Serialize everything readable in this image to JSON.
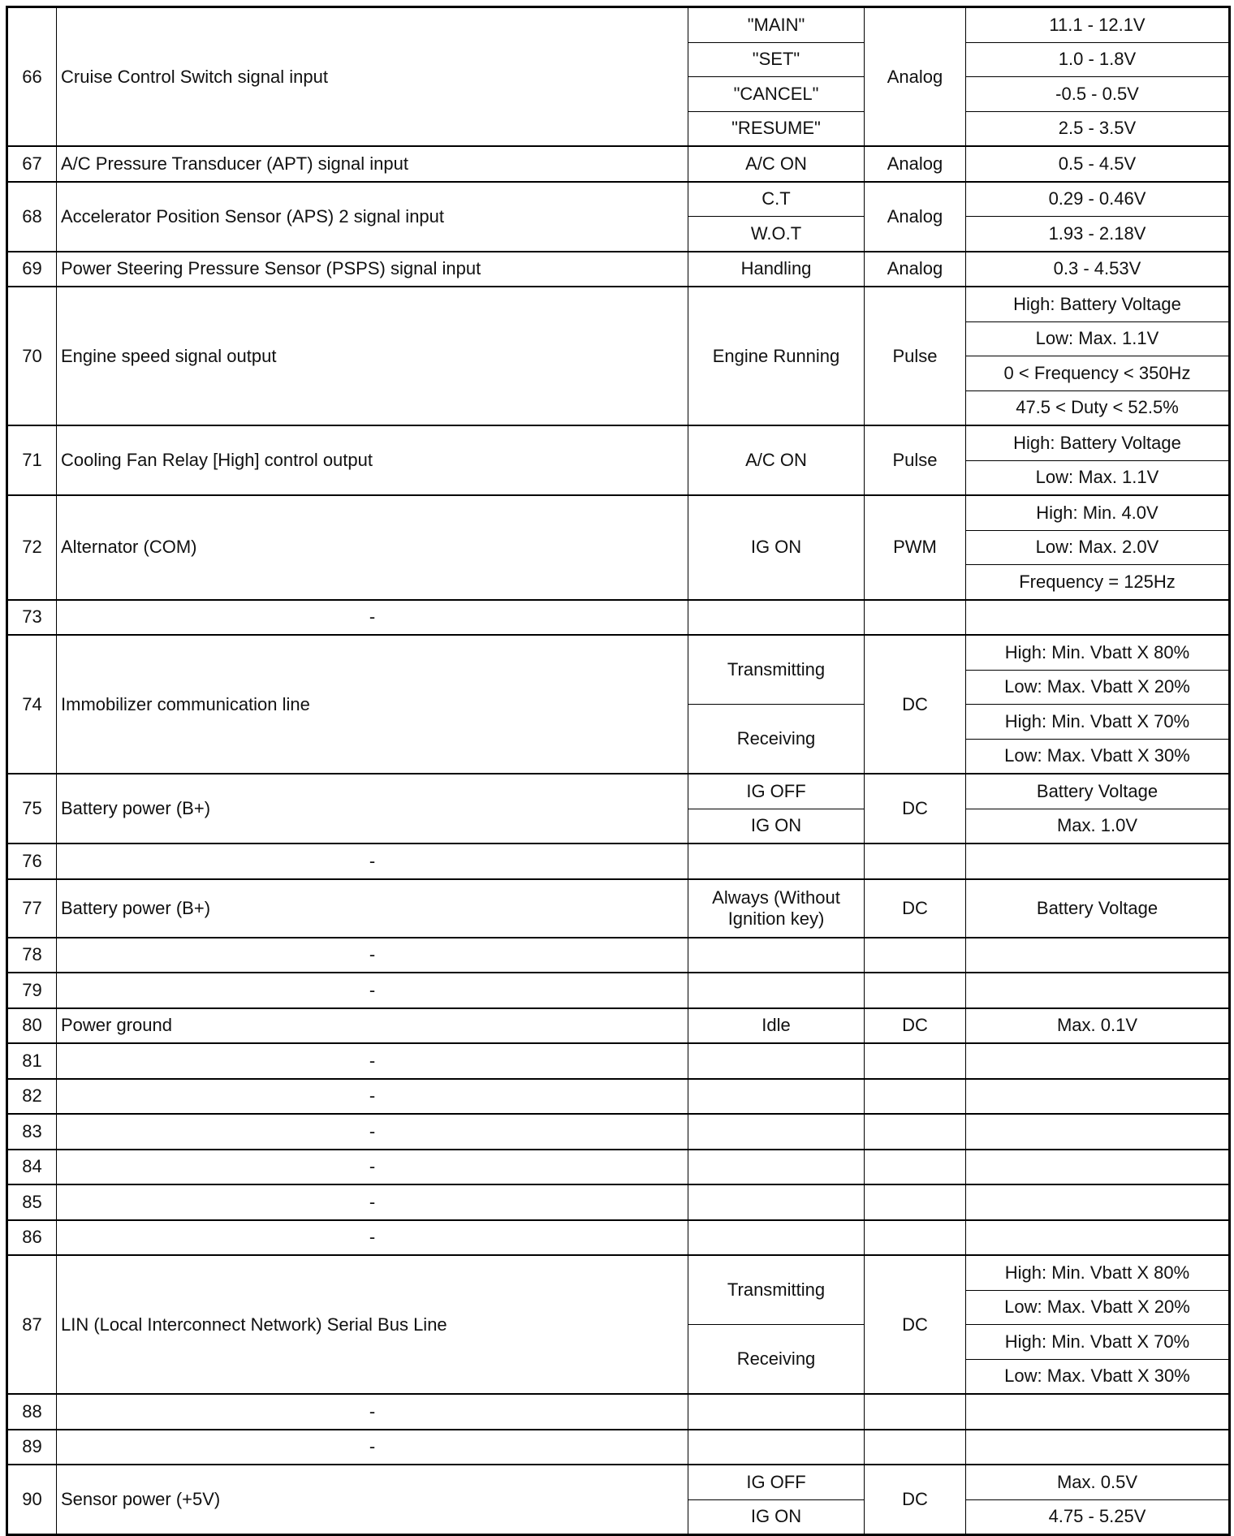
{
  "rows": [
    {
      "pin": "66",
      "description": "Cruise Control Switch signal input",
      "conditions": [
        "\"MAIN\"",
        "\"SET\"",
        "\"CANCEL\"",
        "\"RESUME\""
      ],
      "type": "Analog",
      "values": [
        "11.1 - 12.1V",
        "1.0 - 1.8V",
        "-0.5 - 0.5V",
        "2.5 - 3.5V"
      ]
    },
    {
      "pin": "67",
      "description": "A/C Pressure Transducer (APT) signal input",
      "conditions": [
        "A/C ON"
      ],
      "type": "Analog",
      "values": [
        "0.5 - 4.5V"
      ]
    },
    {
      "pin": "68",
      "description": "Accelerator Position Sensor (APS) 2 signal input",
      "conditions": [
        "C.T",
        "W.O.T"
      ],
      "type": "Analog",
      "values": [
        "0.29 - 0.46V",
        "1.93 - 2.18V"
      ]
    },
    {
      "pin": "69",
      "description": "Power Steering Pressure Sensor (PSPS) signal input",
      "conditions": [
        "Handling"
      ],
      "type": "Analog",
      "values": [
        "0.3 - 4.53V"
      ]
    },
    {
      "pin": "70",
      "description": "Engine speed signal output",
      "conditions": [
        "Engine Running"
      ],
      "type": "Pulse",
      "values": [
        "High: Battery Voltage",
        "Low: Max. 1.1V",
        "0 < Frequency < 350Hz",
        "47.5 < Duty < 52.5%"
      ]
    },
    {
      "pin": "71",
      "description": "Cooling Fan Relay [High] control output",
      "conditions": [
        "A/C ON"
      ],
      "type": "Pulse",
      "values": [
        "High: Battery Voltage",
        "Low: Max. 1.1V"
      ]
    },
    {
      "pin": "72",
      "description": "Alternator (COM)",
      "conditions": [
        "IG ON"
      ],
      "type": "PWM",
      "values": [
        "High: Min. 4.0V",
        "Low: Max. 2.0V",
        "Frequency = 125Hz"
      ]
    },
    {
      "pin": "73",
      "description": "-",
      "conditions": [
        ""
      ],
      "type": "",
      "values": [
        ""
      ]
    },
    {
      "pin": "74",
      "description": "Immobilizer communication line",
      "conditions": [
        "Transmitting",
        "Receiving"
      ],
      "type": "DC",
      "values": [
        "High: Min. Vbatt X 80%",
        "Low: Max. Vbatt X 20%",
        "High: Min. Vbatt X 70%",
        "Low: Max. Vbatt X 30%"
      ]
    },
    {
      "pin": "75",
      "description": "Battery power (B+)",
      "conditions": [
        "IG OFF",
        "IG ON"
      ],
      "type": "DC",
      "values": [
        "Battery Voltage",
        "Max. 1.0V"
      ]
    },
    {
      "pin": "76",
      "description": "-",
      "conditions": [
        ""
      ],
      "type": "",
      "values": [
        ""
      ]
    },
    {
      "pin": "77",
      "description": "Battery power (B+)",
      "conditions": [
        "Always (Without Ignition key)"
      ],
      "type": "DC",
      "values": [
        "Battery Voltage"
      ],
      "tall": true
    },
    {
      "pin": "78",
      "description": "-",
      "conditions": [
        ""
      ],
      "type": "",
      "values": [
        ""
      ]
    },
    {
      "pin": "79",
      "description": "-",
      "conditions": [
        ""
      ],
      "type": "",
      "values": [
        ""
      ]
    },
    {
      "pin": "80",
      "description": "Power ground",
      "conditions": [
        "Idle"
      ],
      "type": "DC",
      "values": [
        "Max. 0.1V"
      ]
    },
    {
      "pin": "81",
      "description": "-",
      "conditions": [
        ""
      ],
      "type": "",
      "values": [
        ""
      ]
    },
    {
      "pin": "82",
      "description": "-",
      "conditions": [
        ""
      ],
      "type": "",
      "values": [
        ""
      ]
    },
    {
      "pin": "83",
      "description": "-",
      "conditions": [
        ""
      ],
      "type": "",
      "values": [
        ""
      ]
    },
    {
      "pin": "84",
      "description": "-",
      "conditions": [
        ""
      ],
      "type": "",
      "values": [
        ""
      ]
    },
    {
      "pin": "85",
      "description": "-",
      "conditions": [
        ""
      ],
      "type": "",
      "values": [
        ""
      ]
    },
    {
      "pin": "86",
      "description": "-",
      "conditions": [
        ""
      ],
      "type": "",
      "values": [
        ""
      ]
    },
    {
      "pin": "87",
      "description": "LIN (Local Interconnect Network) Serial Bus Line",
      "conditions": [
        "Transmitting",
        "Receiving"
      ],
      "type": "DC",
      "values": [
        "High: Min. Vbatt X 80%",
        "Low: Max. Vbatt X 20%",
        "High: Min. Vbatt X 70%",
        "Low: Max. Vbatt X 30%"
      ]
    },
    {
      "pin": "88",
      "description": "-",
      "conditions": [
        ""
      ],
      "type": "",
      "values": [
        ""
      ]
    },
    {
      "pin": "89",
      "description": "-",
      "conditions": [
        ""
      ],
      "type": "",
      "values": [
        ""
      ]
    },
    {
      "pin": "90",
      "description": "Sensor power (+5V)",
      "conditions": [
        "IG OFF",
        "IG ON"
      ],
      "type": "DC",
      "values": [
        "Max. 0.5V",
        "4.75 - 5.25V"
      ]
    }
  ]
}
